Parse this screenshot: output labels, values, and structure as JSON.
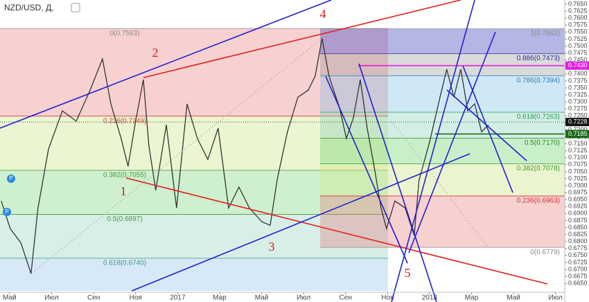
{
  "chart_data": {
    "type": "line",
    "title": "NZD/USD, Д,",
    "x": [
      -0.4,
      0.03,
      0.53,
      1.02,
      1.35,
      1.85,
      2.51,
      3.17,
      3.83,
      4.42,
      4.82,
      5.31,
      5.64,
      5.97,
      6.37,
      6.63,
      6.96,
      7.46,
      7.95,
      8.45,
      8.94,
      9.44,
      9.93,
      10.43,
      10.92,
      11.42,
      12.01,
      12.41,
      12.74,
      13.23,
      13.73,
      14.22,
      14.55,
      14.88,
      15.21,
      15.71,
      16.04,
      16.37,
      16.7,
      17.03,
      17.36,
      17.69,
      17.95,
      18.35,
      18.84,
      19.27,
      19.5,
      20.0,
      20.5,
      20.82,
      21.16,
      21.49,
      21.82,
      22.15,
      22.48,
      22.81
    ],
    "series": [
      {
        "name": "NZD/USD",
        "color": "#333333",
        "values": [
          0.6945,
          0.6846,
          0.6796,
          0.6685,
          0.692,
          0.7131,
          0.7268,
          0.7231,
          0.7342,
          0.7454,
          0.7293,
          0.7169,
          0.7069,
          0.7218,
          0.738,
          0.7144,
          0.6983,
          0.7218,
          0.692,
          0.7293,
          0.7169,
          0.7094,
          0.7206,
          0.692,
          0.6995,
          0.692,
          0.6871,
          0.6858,
          0.702,
          0.7193,
          0.7317,
          0.7342,
          0.7392,
          0.7528,
          0.7392,
          0.728,
          0.7169,
          0.7243,
          0.738,
          0.7206,
          0.7069,
          0.692,
          0.6846,
          0.6945,
          0.692,
          0.6821,
          0.702,
          0.7156,
          0.7317,
          0.7417,
          0.7317,
          0.7417,
          0.7268,
          0.7293,
          0.7193,
          0.7218
        ]
      }
    ],
    "xlim": [
      -0.46,
      26.44
    ],
    "ylim": [
      0.6623,
      0.7665
    ],
    "xticks": [
      {
        "value": 0,
        "label": "Май"
      },
      {
        "value": 2,
        "label": "Июл"
      },
      {
        "value": 4,
        "label": "Сен"
      },
      {
        "value": 6,
        "label": "Ноя"
      },
      {
        "value": 8,
        "label": "2017"
      },
      {
        "value": 10,
        "label": "Мар"
      },
      {
        "value": 12,
        "label": "Май"
      },
      {
        "value": 14,
        "label": "Июл"
      },
      {
        "value": 16,
        "label": "Сен"
      },
      {
        "value": 18,
        "label": "Ноя"
      },
      {
        "value": 20,
        "label": "2018"
      },
      {
        "value": 22,
        "label": "Мар"
      },
      {
        "value": 24,
        "label": "Май"
      },
      {
        "value": 26,
        "label": "Июл"
      }
    ],
    "yticks": [
      {
        "value": 0.665,
        "label": "0.6650"
      },
      {
        "value": 0.6675,
        "label": "0.6675"
      },
      {
        "value": 0.67,
        "label": "0.6700"
      },
      {
        "value": 0.6725,
        "label": "0.6725"
      },
      {
        "value": 0.675,
        "label": "0.6750"
      },
      {
        "value": 0.6775,
        "label": "0.6775"
      },
      {
        "value": 0.68,
        "label": "0.6800"
      },
      {
        "value": 0.6825,
        "label": "0.6825"
      },
      {
        "value": 0.685,
        "label": "0.6850"
      },
      {
        "value": 0.6875,
        "label": "0.6875"
      },
      {
        "value": 0.69,
        "label": "0.6900"
      },
      {
        "value": 0.6925,
        "label": "0.6925"
      },
      {
        "value": 0.695,
        "label": "0.6950"
      },
      {
        "value": 0.6975,
        "label": "0.6975"
      },
      {
        "value": 0.7,
        "label": "0.7000"
      },
      {
        "value": 0.7025,
        "label": "0.7025"
      },
      {
        "value": 0.705,
        "label": "0.7050"
      },
      {
        "value": 0.7075,
        "label": "0.7075"
      },
      {
        "value": 0.71,
        "label": "0.7100"
      },
      {
        "value": 0.7125,
        "label": "0.7125"
      },
      {
        "value": 0.715,
        "label": "0.7150"
      },
      {
        "value": 0.7175,
        "label": "0.7175"
      },
      {
        "value": 0.72,
        "label": "0.7200"
      },
      {
        "value": 0.7225,
        "label": "0.7225"
      },
      {
        "value": 0.725,
        "label": "0.7250"
      },
      {
        "value": 0.7275,
        "label": "0.7275"
      },
      {
        "value": 0.73,
        "label": "0.7300"
      },
      {
        "value": 0.7325,
        "label": "0.7325"
      },
      {
        "value": 0.735,
        "label": "0.7350"
      },
      {
        "value": 0.7375,
        "label": "0.7375"
      },
      {
        "value": 0.74,
        "label": "0.7400"
      },
      {
        "value": 0.7425,
        "label": "0.7425"
      },
      {
        "value": 0.745,
        "label": "0.7450"
      },
      {
        "value": 0.7475,
        "label": "0.7475"
      },
      {
        "value": 0.75,
        "label": "0.7500"
      },
      {
        "value": 0.7525,
        "label": "0.7525"
      },
      {
        "value": 0.755,
        "label": "0.7550"
      },
      {
        "value": 0.7575,
        "label": "0.7575"
      },
      {
        "value": 0.76,
        "label": "0.7600"
      },
      {
        "value": 0.7625,
        "label": "0.7625"
      },
      {
        "value": 0.765,
        "label": "0.7650"
      }
    ],
    "price_tags": [
      {
        "value": 0.743,
        "label": "0.7430",
        "color": "#e020e0"
      },
      {
        "value": 0.7228,
        "label": "0.7228",
        "color": "#111111"
      },
      {
        "value": 0.7185,
        "label": "0.7185",
        "color": "#1a6b1a"
      }
    ],
    "fib_left": [
      {
        "value": 0.7563,
        "label": "0(0.7563)",
        "label_color": "#888888",
        "band_color": "rgba(230,110,110,0.32)"
      },
      {
        "value": 0.7249,
        "label": "0.236(0.7249)",
        "label_color": "#d04040",
        "band_color": "rgba(205,230,140,0.4)"
      },
      {
        "value": 0.7055,
        "label": "0.382(0.7055)",
        "label_color": "#4a9a3a",
        "band_color": "rgba(130,215,130,0.38)"
      },
      {
        "value": 0.6897,
        "label": "0.5(0.6897)",
        "label_color": "#4a9a3a",
        "band_color": "rgba(130,205,180,0.32)"
      },
      {
        "value": 0.674,
        "label": "0.618(0.6740)",
        "label_color": "#3a9a8a",
        "band_color": "rgba(130,185,230,0.32)"
      }
    ],
    "fib_right": [
      {
        "value": 0.7562,
        "label": "1(0.7562)",
        "label_color": "#888888",
        "band_color": "rgba(90,90,200,0.45)"
      },
      {
        "value": 0.7473,
        "label": "0.886(0.7473)",
        "label_color": "#2a2aa0",
        "band_color": "rgba(150,150,150,0.35)"
      },
      {
        "value": 0.7394,
        "label": "0.786(0.7394)",
        "label_color": "#2a7ab0",
        "band_color": "rgba(120,190,230,0.35)"
      },
      {
        "value": 0.7263,
        "label": "0.618(0.7263)",
        "label_color": "#2a9a5a",
        "band_color": "rgba(130,205,180,0.35)"
      },
      {
        "value": 0.717,
        "label": "0.5(0.7170)",
        "label_color": "#2a8a2a",
        "band_color": "rgba(100,210,100,0.35)"
      },
      {
        "value": 0.7078,
        "label": "0.382(0.7078)",
        "label_color": "#3a9a2a",
        "band_color": "rgba(205,230,140,0.42)"
      },
      {
        "value": 0.6963,
        "label": "0.236(0.6963)",
        "label_color": "#d03030",
        "band_color": "rgba(230,110,110,0.32)"
      },
      {
        "value": 0.6779,
        "label": "0(0.6779)",
        "label_color": "#888888"
      }
    ],
    "annotations": [
      "1",
      "2",
      "3",
      "4",
      "5"
    ]
  }
}
